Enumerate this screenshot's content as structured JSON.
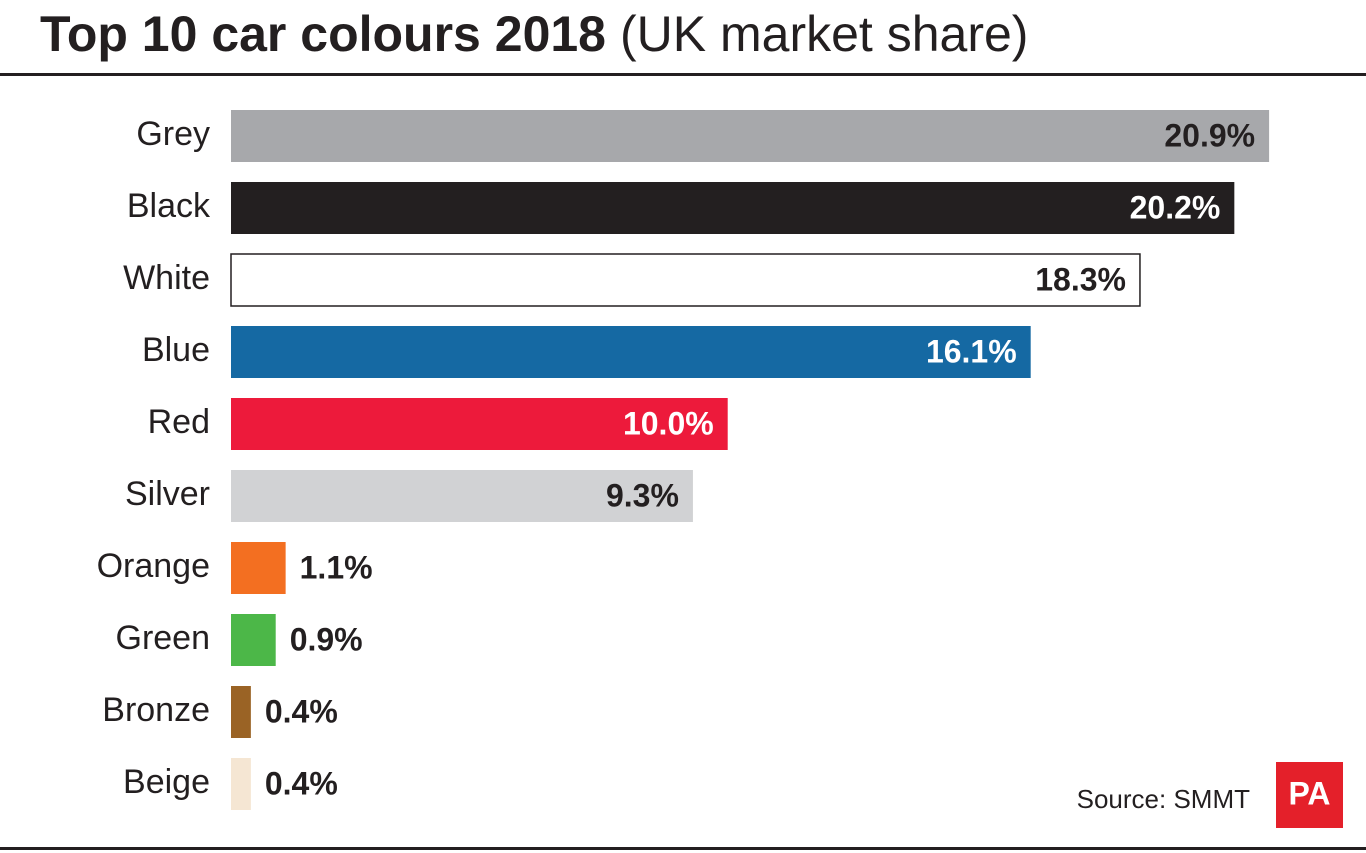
{
  "chart_data": {
    "type": "bar",
    "orientation": "horizontal",
    "title": "Top 10 car colours 2018",
    "subtitle": "(UK market share)",
    "categories": [
      "Grey",
      "Black",
      "White",
      "Blue",
      "Red",
      "Silver",
      "Orange",
      "Green",
      "Bronze",
      "Beige"
    ],
    "values": [
      20.9,
      20.2,
      18.3,
      16.1,
      10.0,
      9.3,
      1.1,
      0.9,
      0.4,
      0.4
    ],
    "value_labels": [
      "20.9%",
      "20.2%",
      "18.3%",
      "16.1%",
      "10.0%",
      "9.3%",
      "1.1%",
      "0.9%",
      "0.4%",
      "0.4%"
    ],
    "colors": [
      "#a7a8ab",
      "#231f20",
      "#ffffff",
      "#1569a3",
      "#ed1a3b",
      "#d1d2d4",
      "#f36f21",
      "#4cb748",
      "#9a6325",
      "#f5e6d3"
    ],
    "source": "Source: SMMT",
    "logo": "PA"
  }
}
